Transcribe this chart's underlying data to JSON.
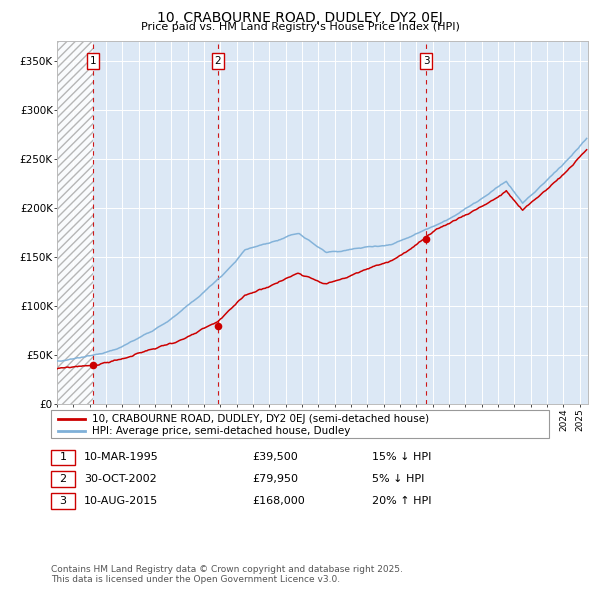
{
  "title": "10, CRABOURNE ROAD, DUDLEY, DY2 0EJ",
  "subtitle": "Price paid vs. HM Land Registry's House Price Index (HPI)",
  "xlim_start": 1993.0,
  "xlim_end": 2025.5,
  "ylim": [
    0,
    370000
  ],
  "yticks": [
    0,
    50000,
    100000,
    150000,
    200000,
    250000,
    300000,
    350000
  ],
  "ytick_labels": [
    "£0",
    "£50K",
    "£100K",
    "£150K",
    "£200K",
    "£250K",
    "£300K",
    "£350K"
  ],
  "sale_dates": [
    1995.19,
    2002.83,
    2015.61
  ],
  "sale_prices": [
    39500,
    79950,
    168000
  ],
  "sale_labels": [
    "1",
    "2",
    "3"
  ],
  "vline_color": "#cc0000",
  "hpi_line_color": "#7fb0d8",
  "price_line_color": "#cc0000",
  "dot_color": "#cc0000",
  "bg_color": "#dce8f5",
  "legend_entries": [
    "10, CRABOURNE ROAD, DUDLEY, DY2 0EJ (semi-detached house)",
    "HPI: Average price, semi-detached house, Dudley"
  ],
  "table_entries": [
    {
      "num": "1",
      "date": "10-MAR-1995",
      "price": "£39,500",
      "hpi": "15% ↓ HPI"
    },
    {
      "num": "2",
      "date": "30-OCT-2002",
      "price": "£79,950",
      "hpi": "5% ↓ HPI"
    },
    {
      "num": "3",
      "date": "10-AUG-2015",
      "price": "£168,000",
      "hpi": "20% ↑ HPI"
    }
  ],
  "footnote": "Contains HM Land Registry data © Crown copyright and database right 2025.\nThis data is licensed under the Open Government Licence v3.0."
}
